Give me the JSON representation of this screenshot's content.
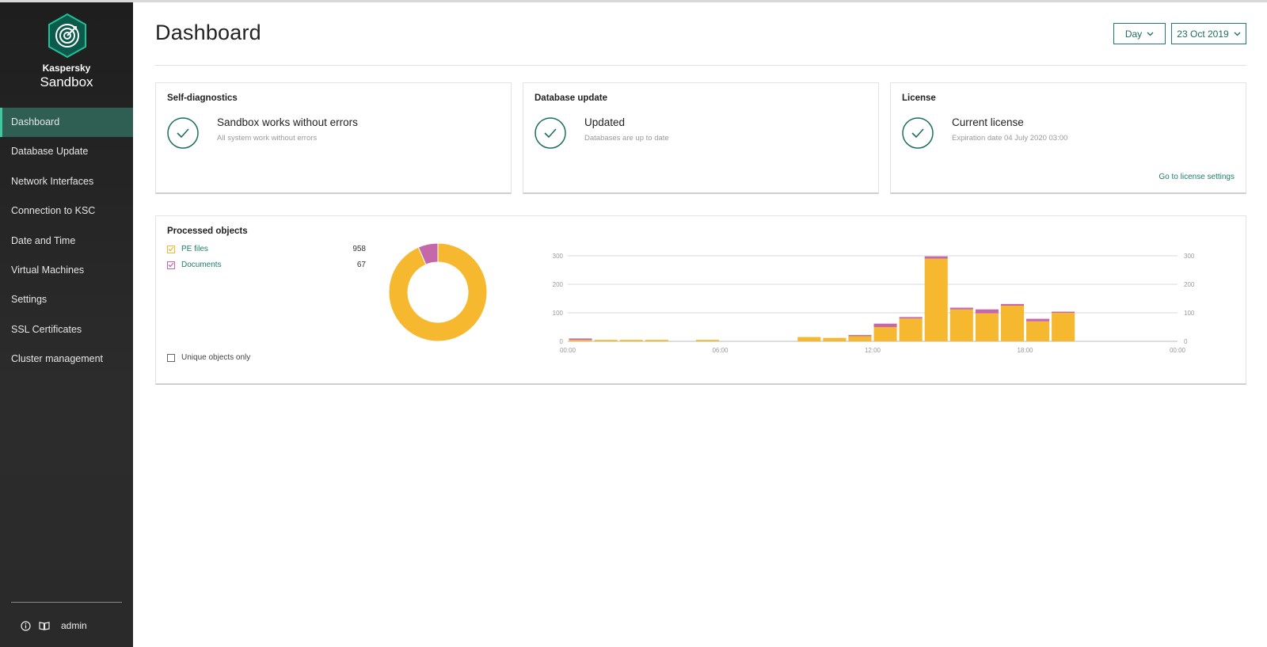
{
  "sidebar": {
    "brand_small": "Kaspersky",
    "brand_big": "Sandbox",
    "items": [
      {
        "label": "Dashboard",
        "active": true
      },
      {
        "label": "Database Update"
      },
      {
        "label": "Network Interfaces"
      },
      {
        "label": "Connection to KSC"
      },
      {
        "label": "Date and Time"
      },
      {
        "label": "Virtual Machines"
      },
      {
        "label": "Settings"
      },
      {
        "label": "SSL Certificates"
      },
      {
        "label": "Cluster management"
      }
    ],
    "footer": {
      "info_icon": "info-icon",
      "help_icon": "book-icon",
      "user": "admin"
    }
  },
  "header": {
    "title": "Dashboard",
    "period": "Day",
    "date": "23 Oct 2019"
  },
  "cards": {
    "self_diag": {
      "title": "Self-diagnostics",
      "status": "Sandbox works without errors",
      "detail": "All system work without errors"
    },
    "db_update": {
      "title": "Database update",
      "status": "Updated",
      "detail": "Databases are up to date"
    },
    "license": {
      "title": "License",
      "status": "Current license",
      "detail": "Expiration date 04 July 2020 03:00",
      "link": "Go to license settings"
    }
  },
  "processed": {
    "title": "Processed objects",
    "legend": [
      {
        "label": "PE files",
        "count": "958",
        "color": "#f5b82e"
      },
      {
        "label": "Documents",
        "count": "67",
        "color": "#c468a9"
      }
    ],
    "unique_label": "Unique objects only"
  },
  "chart_data": [
    {
      "type": "pie",
      "variant": "donut",
      "labels": [
        "PE files",
        "Documents"
      ],
      "values": [
        958,
        67
      ],
      "colors": [
        "#f5b82e",
        "#c468a9"
      ]
    },
    {
      "type": "bar",
      "stacked": true,
      "x_ticks": [
        "00:00",
        "06:00",
        "12:00",
        "18:00",
        "00:00"
      ],
      "y_ticks": [
        0,
        100,
        200,
        300
      ],
      "ylim": [
        0,
        300
      ],
      "xlim_hours": [
        0,
        24
      ],
      "bars": [
        {
          "hour": 0,
          "pe": 5,
          "doc": 5
        },
        {
          "hour": 1,
          "pe": 5,
          "doc": 0
        },
        {
          "hour": 2,
          "pe": 5,
          "doc": 0
        },
        {
          "hour": 3,
          "pe": 5,
          "doc": 0
        },
        {
          "hour": 5,
          "pe": 5,
          "doc": 0
        },
        {
          "hour": 9,
          "pe": 15,
          "doc": 0
        },
        {
          "hour": 10,
          "pe": 12,
          "doc": 0
        },
        {
          "hour": 11,
          "pe": 18,
          "doc": 4
        },
        {
          "hour": 12,
          "pe": 50,
          "doc": 12
        },
        {
          "hour": 13,
          "pe": 80,
          "doc": 5
        },
        {
          "hour": 14,
          "pe": 290,
          "doc": 8
        },
        {
          "hour": 15,
          "pe": 112,
          "doc": 6
        },
        {
          "hour": 16,
          "pe": 98,
          "doc": 14
        },
        {
          "hour": 17,
          "pe": 125,
          "doc": 6
        },
        {
          "hour": 18,
          "pe": 70,
          "doc": 9
        },
        {
          "hour": 19,
          "pe": 100,
          "doc": 4
        }
      ],
      "series": [
        {
          "name": "PE files",
          "color": "#f5b82e"
        },
        {
          "name": "Documents",
          "color": "#c468a9"
        }
      ],
      "grid": true
    }
  ]
}
